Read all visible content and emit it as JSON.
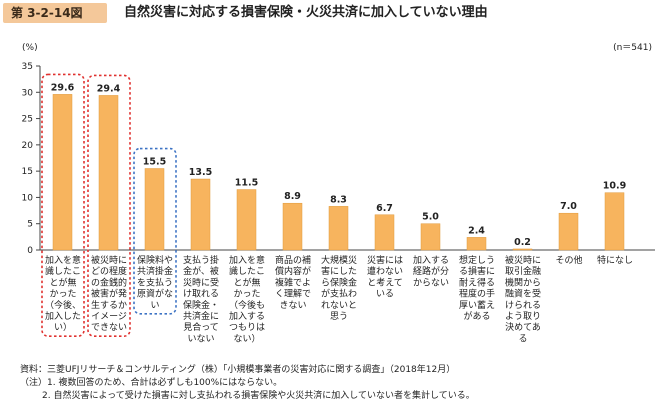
{
  "figure": {
    "number": "第 3-2-14図",
    "title": "自然災害に対応する損害保険・火災共済に加入していない理由"
  },
  "chart_data": {
    "type": "bar",
    "unit_label": "(%)",
    "sample_size": "(n＝541)",
    "ylim": [
      0,
      35
    ],
    "yticks": [
      0,
      5,
      10,
      15,
      20,
      25,
      30,
      35
    ],
    "bar_color": "#f7b45e",
    "categories": [
      [
        "加入を意",
        "識したこ",
        "とが無",
        "かった",
        "（今後、",
        "加入した",
        "い）"
      ],
      [
        "被災時に",
        "どの程度",
        "の金銭的",
        "被害が発",
        "生するか",
        "イメージ",
        "できない"
      ],
      [
        "保険料や",
        "共済掛金",
        "を支払う",
        "原資がな",
        "い"
      ],
      [
        "支払う掛",
        "金が、被",
        "災時に受",
        "け取れる",
        "保険金・",
        "共済金に",
        "見合って",
        "いない"
      ],
      [
        "加入を意",
        "識したこ",
        "とが無",
        "かった",
        "（今後も",
        "加入する",
        "つもりは",
        "ない）"
      ],
      [
        "商品の補",
        "償内容が",
        "複雑でよ",
        "く理解で",
        "きない"
      ],
      [
        "大規模災",
        "害にした",
        "ら保険金",
        "が支払わ",
        "れないと",
        "思う"
      ],
      [
        "災害には",
        "遭わない",
        "と考えて",
        "いる"
      ],
      [
        "加入する",
        "経路が分",
        "からない"
      ],
      [
        "想定しう",
        "る損害に",
        "耐え得る",
        "程度の手",
        "厚い蓄え",
        "がある"
      ],
      [
        "被災時に",
        "取引金融",
        "機関から",
        "融資を受",
        "けられる",
        "よう取り",
        "決めてあ",
        "る"
      ],
      [
        "その他"
      ],
      [
        "特になし"
      ]
    ],
    "values": [
      29.6,
      29.4,
      15.5,
      13.5,
      11.5,
      8.9,
      8.3,
      6.7,
      5.0,
      2.4,
      0.2,
      7.0,
      10.9
    ],
    "value_labels": [
      "29.6",
      "29.4",
      "15.5",
      "13.5",
      "11.5",
      "8.9",
      "8.3",
      "6.7",
      "5.0",
      "2.4",
      "0.2",
      "7.0",
      "10.9"
    ],
    "highlights": [
      {
        "index": 0,
        "color": "#e0312f"
      },
      {
        "index": 1,
        "color": "#e0312f"
      },
      {
        "index": 2,
        "color": "#3d73c4"
      }
    ]
  },
  "notes": {
    "source": "資料：三菱UFJリサーチ＆コンサルティング（株）「小規模事業者の災害対応に関する調査」（2018年12月）",
    "note1": "（注）1. 複数回答のため、合計は必ずしも100%にはならない。",
    "note2": "2. 自然災害によって受けた損害に対し支払われる損害保険や火災共済に加入していない者を集計している。"
  }
}
